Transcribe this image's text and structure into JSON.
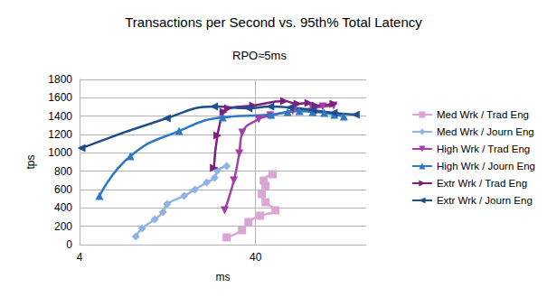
{
  "chart_data": {
    "type": "line",
    "title": "Transactions per Second vs. 95th% Total Latency",
    "subtitle": "RPO≈5ms",
    "x_label": "ms",
    "y_label": "tps",
    "log": "x",
    "grid": true,
    "legend": "right",
    "xlim": [
      4,
      170
    ],
    "xticks": [
      4,
      40
    ],
    "ylim": [
      0,
      1800
    ],
    "yticks": [
      0,
      200,
      400,
      600,
      800,
      1000,
      1200,
      1400,
      1600,
      1800
    ],
    "series": [
      {
        "name": "Med Wrk / Trad Eng",
        "color": "#dba6d6",
        "marker": "square",
        "x": [
          27.4,
          33.5,
          36.4,
          42.5,
          51.9,
          45.6,
          43.4,
          45.6,
          44.5,
          50.0
        ],
        "values": [
          79,
          157,
          246,
          315,
          374,
          462,
          551,
          639,
          698,
          767
        ]
      },
      {
        "name": "Med Wrk / Journ Eng",
        "color": "#8fb4e3",
        "marker": "diamond",
        "x": [
          8.35,
          9.07,
          10.7,
          11.9,
          12.6,
          15.7,
          18.1,
          21.1,
          23.4,
          24.3,
          27.4
        ],
        "values": [
          88,
          177,
          275,
          354,
          442,
          531,
          600,
          678,
          728,
          806,
          855
        ]
      },
      {
        "name": "High Wrk / Trad Eng",
        "color": "#a040a8",
        "marker": "triangle-down",
        "x": [
          26.7,
          30.1,
          32.3,
          33.6,
          41.7,
          48.4,
          65.1,
          84.5,
          96.3,
          111
        ],
        "values": [
          374,
          698,
          993,
          1219,
          1367,
          1406,
          1455,
          1485,
          1504,
          1514
        ]
      },
      {
        "name": "High Wrk / Journ Eng",
        "color": "#2f78c4",
        "marker": "triangle-up",
        "x": [
          5.19,
          7.77,
          14.7,
          26.0,
          49.0,
          60.9,
          71,
          84.5,
          98.4,
          112,
          127
        ],
        "values": [
          531,
          964,
          1239,
          1386,
          1416,
          1445,
          1455,
          1445,
          1436,
          1416,
          1396
        ]
      },
      {
        "name": "Extr Wrk / Trad Eng",
        "color": "#7e1f80",
        "marker": "triangle-right",
        "x": [
          23.2,
          24.3,
          26.3,
          28.0,
          38.8,
          58.3,
          69.4,
          80,
          87.9,
          111
        ],
        "values": [
          836,
          1190,
          1445,
          1485,
          1514,
          1563,
          1534,
          1544,
          1514,
          1534
        ]
      },
      {
        "name": "Extr Wrk / Journ Eng",
        "color": "#1f4e8c",
        "marker": "triangle-left",
        "x": [
          4.1,
          12.5,
          23.2,
          36.4,
          48.4,
          62.7,
          84.5,
          111,
          148
        ],
        "values": [
          1052,
          1377,
          1504,
          1485,
          1504,
          1494,
          1465,
          1436,
          1416
        ]
      }
    ]
  }
}
